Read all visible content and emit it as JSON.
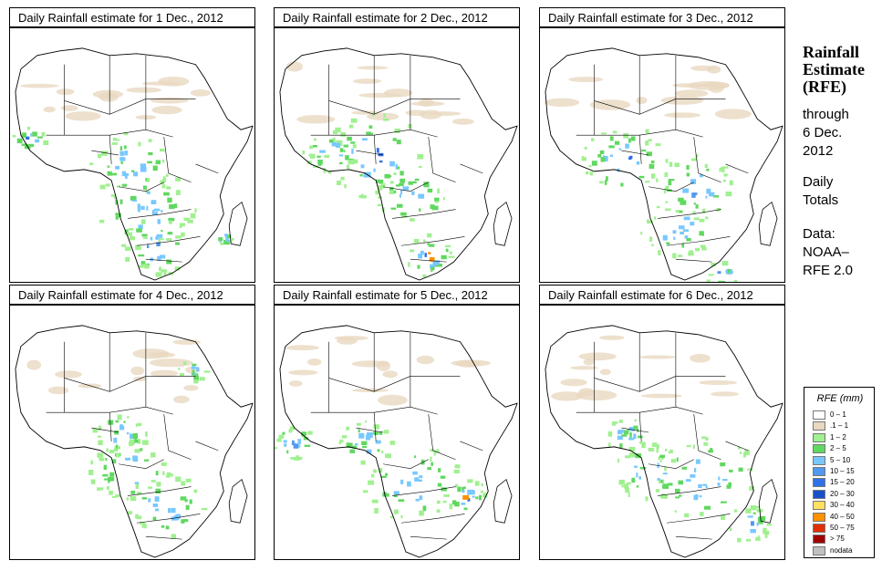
{
  "panels": [
    {
      "title": "Daily Rainfall estimate for  1 Dec., 2012",
      "date": "1 Dec., 2012"
    },
    {
      "title": "Daily Rainfall estimate for  2 Dec., 2012",
      "date": "2 Dec., 2012"
    },
    {
      "title": "Daily Rainfall estimate for  3 Dec., 2012",
      "date": "3 Dec., 2012"
    },
    {
      "title": "Daily Rainfall estimate for  4 Dec., 2012",
      "date": "4 Dec., 2012"
    },
    {
      "title": "Daily Rainfall estimate for  5 Dec., 2012",
      "date": "5 Dec., 2012"
    },
    {
      "title": "Daily Rainfall estimate for  6 Dec., 2012",
      "date": "6 Dec., 2012"
    }
  ],
  "sidebar": {
    "title_line1": "Rainfall",
    "title_line2": "Estimate",
    "title_line3": "(RFE)",
    "through_label": "through",
    "through_date1": "6 Dec.",
    "through_date2": "2012",
    "totals_line1": "Daily",
    "totals_line2": "Totals",
    "data_label": "Data:",
    "data_source1": "NOAA–",
    "data_source2": "RFE 2.0"
  },
  "legend": {
    "title": "RFE (mm)",
    "items": [
      {
        "label": "0 – 1",
        "color": "#ffffff"
      },
      {
        "label": ".1 – 1",
        "color": "#e8d8c0"
      },
      {
        "label": "1 – 2",
        "color": "#a0f090"
      },
      {
        "label": "2 – 5",
        "color": "#60d860"
      },
      {
        "label": "5 – 10",
        "color": "#78c8ff"
      },
      {
        "label": "10 – 15",
        "color": "#5098f0"
      },
      {
        "label": "15 – 20",
        "color": "#3070e8"
      },
      {
        "label": "20 – 30",
        "color": "#1850c8"
      },
      {
        "label": "30 – 40",
        "color": "#ffe060"
      },
      {
        "label": "40 – 50",
        "color": "#ff9000"
      },
      {
        "label": "50 – 75",
        "color": "#e03000"
      },
      {
        "label": "> 75",
        "color": "#a00000"
      },
      {
        "label": "nodata",
        "color": "#c0c0c0"
      }
    ]
  }
}
